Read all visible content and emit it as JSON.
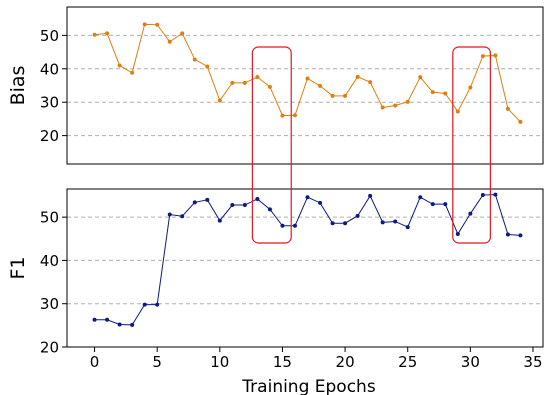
{
  "chart_data": [
    {
      "type": "line",
      "ylabel": "Bias",
      "ylim": [
        11.5,
        58.5
      ],
      "yticks": [
        20,
        30,
        40,
        50
      ],
      "xlim": [
        -2.2,
        35.8
      ],
      "grid": "y-dashed",
      "series": [
        {
          "color": "#e07f0d",
          "x": [
            0,
            1,
            2,
            3,
            4,
            5,
            6,
            7,
            8,
            9,
            10,
            11,
            12,
            13,
            14,
            15,
            16,
            17,
            18,
            19,
            20,
            21,
            22,
            23,
            24,
            25,
            26,
            27,
            28,
            29,
            30,
            31,
            32,
            33,
            34
          ],
          "values": [
            50.2,
            50.6,
            41.0,
            38.8,
            53.3,
            53.2,
            48.1,
            50.6,
            42.8,
            40.7,
            30.5,
            35.8,
            35.8,
            37.5,
            34.6,
            26.0,
            26.1,
            37.1,
            34.9,
            31.9,
            31.9,
            37.6,
            36.0,
            28.4,
            29.0,
            30.1,
            37.5,
            33.0,
            32.6,
            27.2,
            34.4,
            43.8,
            44.0,
            28.0,
            24.1
          ]
        }
      ]
    },
    {
      "type": "line",
      "ylabel": "F1",
      "xlabel": "Training Epochs",
      "ylim": [
        20,
        56.5
      ],
      "yticks": [
        20,
        30,
        40,
        50
      ],
      "xlim": [
        -2.2,
        35.8
      ],
      "xticks": [
        0,
        5,
        10,
        15,
        20,
        25,
        30,
        35
      ],
      "grid": "y-dashed",
      "series": [
        {
          "color": "#0d1a80",
          "x": [
            0,
            1,
            2,
            3,
            4,
            5,
            6,
            7,
            8,
            9,
            10,
            11,
            12,
            13,
            14,
            15,
            16,
            17,
            18,
            19,
            20,
            21,
            22,
            23,
            24,
            25,
            26,
            27,
            28,
            29,
            30,
            31,
            32,
            33,
            34
          ],
          "values": [
            26.3,
            26.3,
            25.2,
            25.1,
            29.8,
            29.8,
            50.6,
            50.2,
            53.4,
            54.0,
            49.2,
            52.8,
            52.8,
            54.2,
            51.8,
            48.0,
            48.0,
            54.6,
            53.3,
            48.6,
            48.6,
            50.3,
            54.9,
            48.8,
            49.0,
            47.7,
            54.6,
            53.0,
            53.0,
            46.1,
            50.8,
            55.1,
            55.2,
            46.0,
            45.8
          ]
        }
      ]
    }
  ],
  "annotations": [
    {
      "shape": "rounded-rectangle",
      "color": "#e8171e",
      "x_range": [
        12.6,
        15.7
      ]
    },
    {
      "shape": "rounded-rectangle",
      "color": "#e8171e",
      "x_range": [
        28.6,
        31.6
      ]
    }
  ]
}
